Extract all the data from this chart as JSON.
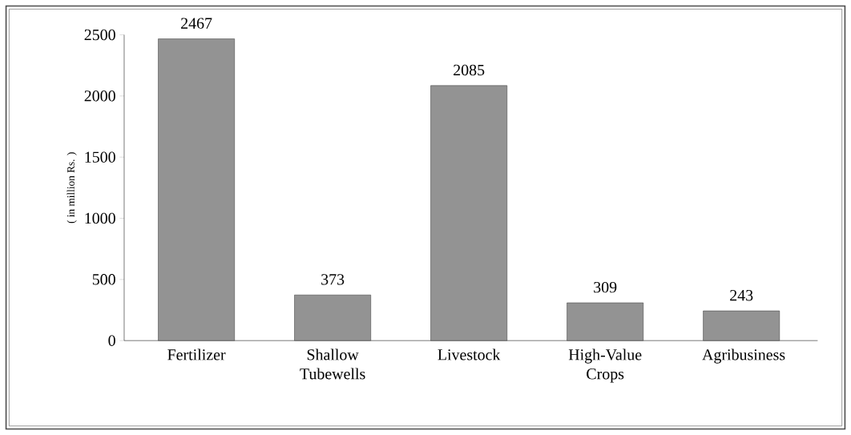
{
  "chart_data": {
    "type": "bar",
    "ylabel": "( in million Rs. )",
    "categories": [
      "Fertilizer",
      "Shallow Tubewells",
      "Livestock",
      "High-Value Crops",
      "Agribusiness"
    ],
    "values": [
      2467,
      373,
      2085,
      309,
      243
    ],
    "color": "#3a3a3a",
    "ylim": [
      0,
      2500
    ],
    "yticks": [
      0,
      500,
      1000,
      1500,
      2000,
      2500
    ],
    "data_labels": true
  }
}
